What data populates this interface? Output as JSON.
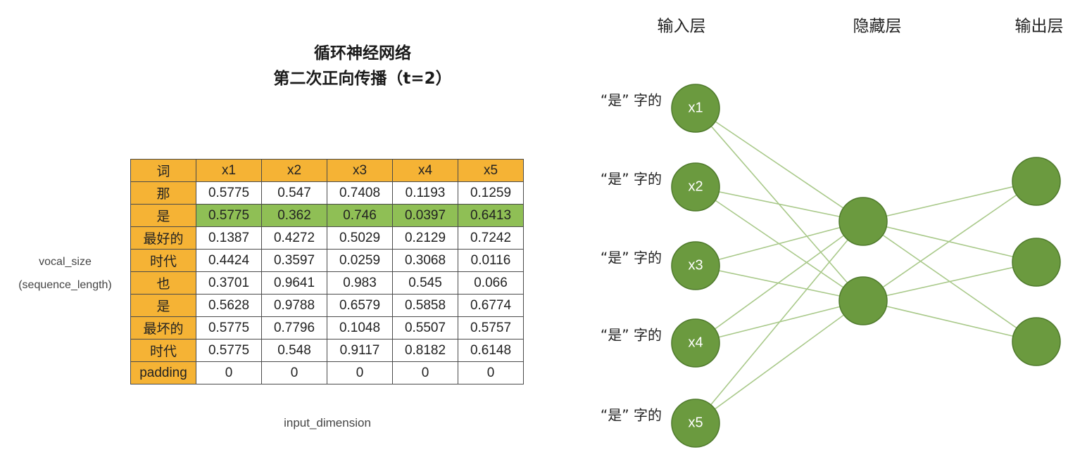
{
  "title": {
    "line1": "循环神经网络",
    "line2": "第二次正向传播（t=2）"
  },
  "table": {
    "headers": [
      "词",
      "x1",
      "x2",
      "x3",
      "x4",
      "x5"
    ],
    "rows": [
      {
        "word": "那",
        "values": [
          "0.5775",
          "0.547",
          "0.7408",
          "0.1193",
          "0.1259"
        ],
        "highlight": false
      },
      {
        "word": "是",
        "values": [
          "0.5775",
          "0.362",
          "0.746",
          "0.0397",
          "0.6413"
        ],
        "highlight": true
      },
      {
        "word": "最好的",
        "values": [
          "0.1387",
          "0.4272",
          "0.5029",
          "0.2129",
          "0.7242"
        ],
        "highlight": false
      },
      {
        "word": "时代",
        "values": [
          "0.4424",
          "0.3597",
          "0.0259",
          "0.3068",
          "0.0116"
        ],
        "highlight": false
      },
      {
        "word": "也",
        "values": [
          "0.3701",
          "0.9641",
          "0.983",
          "0.545",
          "0.066"
        ],
        "highlight": false
      },
      {
        "word": "是",
        "values": [
          "0.5628",
          "0.9788",
          "0.6579",
          "0.5858",
          "0.6774"
        ],
        "highlight": false
      },
      {
        "word": "最坏的",
        "values": [
          "0.5775",
          "0.7796",
          "0.1048",
          "0.5507",
          "0.5757"
        ],
        "highlight": false
      },
      {
        "word": "时代",
        "values": [
          "0.5775",
          "0.548",
          "0.9117",
          "0.8182",
          "0.6148"
        ],
        "highlight": false
      },
      {
        "word": "padding",
        "values": [
          "0",
          "0",
          "0",
          "0",
          "0"
        ],
        "highlight": false
      }
    ],
    "row_axis_label_line1": "vocal_size",
    "row_axis_label_line2": "(sequence_length)",
    "col_axis_label": "input_dimension"
  },
  "network": {
    "layer_titles": [
      "输入层",
      "隐藏层",
      "输出层"
    ],
    "input_nodes": [
      {
        "label": "x1",
        "source": "“是” 字的"
      },
      {
        "label": "x2",
        "source": "“是” 字的"
      },
      {
        "label": "x3",
        "source": "“是” 字的"
      },
      {
        "label": "x4",
        "source": "“是” 字的"
      },
      {
        "label": "x5",
        "source": "“是” 字的"
      }
    ],
    "hidden_node_count": 2,
    "output_node_count": 3
  },
  "colors": {
    "header_fill": "#f5b335",
    "highlight_fill": "#8fbf55",
    "node_fill": "#6b9a3f",
    "node_stroke": "#4f7a2c",
    "edge": "#a9c98a"
  }
}
